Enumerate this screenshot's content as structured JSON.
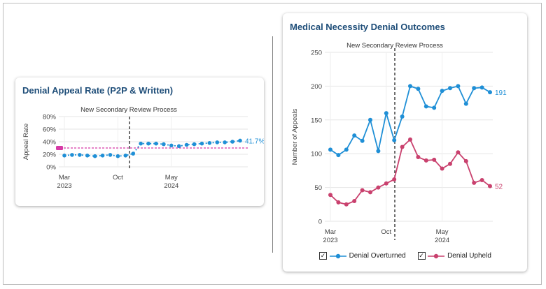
{
  "chart_data": [
    {
      "type": "line",
      "title": "Denial Appeal Rate (P2P & Written)",
      "xlabel": "",
      "ylabel": "Appeal Rate",
      "ylim": [
        0,
        80
      ],
      "yticks": [
        "0%",
        "20%",
        "40%",
        "60%",
        "80%"
      ],
      "xticks": [
        {
          "label": "Mar",
          "sub": "2023",
          "index": 0
        },
        {
          "label": "Oct",
          "sub": "",
          "index": 7
        },
        {
          "label": "May",
          "sub": "2024",
          "index": 14
        }
      ],
      "annotation": "New Secondary Review Process",
      "baseline_value": 30,
      "end_label": "41.7%",
      "series": [
        {
          "name": "Appeal Rate",
          "color": "#1f8fd6",
          "values": [
            18,
            19,
            19,
            18,
            17,
            18,
            19,
            17,
            18,
            21,
            37,
            37,
            37,
            36,
            34,
            33,
            35,
            36,
            37,
            38,
            39,
            39,
            40,
            41.7
          ]
        }
      ]
    },
    {
      "type": "line",
      "title": "Medical Necessity Denial Outcomes",
      "xlabel": "",
      "ylabel": "Number of Appeals",
      "ylim": [
        0,
        250
      ],
      "yticks": [
        "0",
        "50",
        "100",
        "150",
        "200",
        "250"
      ],
      "xticks": [
        {
          "label": "Mar",
          "sub": "2023",
          "index": 0
        },
        {
          "label": "Oct",
          "sub": "",
          "index": 7
        },
        {
          "label": "May",
          "sub": "2024",
          "index": 14
        }
      ],
      "annotation": "New Secondary Review Process",
      "legend": [
        {
          "label": "Denial Overturned",
          "checked": "✓"
        },
        {
          "label": "Denial Upheld",
          "checked": "✓"
        }
      ],
      "series": [
        {
          "name": "Denial Overturned",
          "color": "#1f8fd6",
          "end_label": "191",
          "values": [
            106,
            98,
            106,
            127,
            119,
            150,
            104,
            160,
            120,
            155,
            200,
            196,
            170,
            168,
            193,
            197,
            200,
            174,
            197,
            198,
            191
          ]
        },
        {
          "name": "Denial Upheld",
          "color": "#c9416e",
          "end_label": "52",
          "values": [
            39,
            28,
            25,
            30,
            46,
            43,
            50,
            56,
            62,
            110,
            121,
            95,
            90,
            91,
            78,
            85,
            102,
            89,
            57,
            61,
            52
          ]
        }
      ]
    }
  ]
}
